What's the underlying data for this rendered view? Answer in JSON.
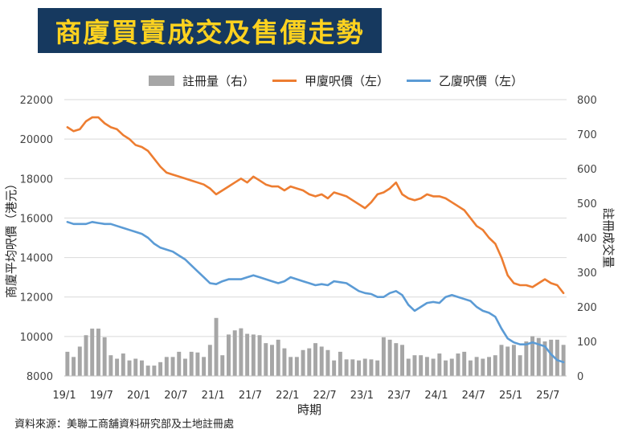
{
  "header": {
    "title": "商廈買賣成交及售價走勢"
  },
  "legend": {
    "bar_label": "註冊量（右）",
    "series_a_label": "甲廈呎價（左）",
    "series_b_label": "乙廈呎價（左）"
  },
  "source": "資料來源：美聯工商舖資料研究部及土地註冊處",
  "colors": {
    "series_a": "#ed7d31",
    "series_b": "#5b9bd5",
    "bars": "#a6a6a6",
    "title_bg": "#16395f",
    "title_text": "#ffd21f"
  },
  "chart_data": {
    "type": "bar+line",
    "xlabel": "時期",
    "ylabel_left": "商廈平均呎價（港元）",
    "ylabel_right": "註冊成交量",
    "ylim_left": [
      8000,
      22000
    ],
    "ylim_right": [
      0,
      800
    ],
    "y_ticks_left": [
      "8000",
      "10000",
      "12000",
      "14000",
      "16000",
      "18000",
      "20000",
      "22000"
    ],
    "y_ticks_right": [
      "0",
      "100",
      "200",
      "300",
      "400",
      "500",
      "600",
      "700",
      "800"
    ],
    "x_ticks": [
      "19/1",
      "19/7",
      "20/1",
      "20/7",
      "21/1",
      "21/7",
      "22/1",
      "22/7",
      "23/1",
      "23/7",
      "24/1",
      "24/7",
      "25/1",
      "25/7"
    ],
    "grid": "horizontal",
    "legend_position": "top",
    "series": [
      {
        "name": "註冊量（右）",
        "kind": "bar",
        "axis": "right",
        "values": [
          70,
          55,
          85,
          118,
          137,
          137,
          112,
          60,
          50,
          65,
          45,
          50,
          45,
          30,
          30,
          40,
          55,
          55,
          70,
          50,
          70,
          68,
          55,
          90,
          168,
          60,
          120,
          132,
          138,
          122,
          120,
          118,
          95,
          90,
          105,
          80,
          55,
          55,
          75,
          80,
          95,
          85,
          75,
          45,
          70,
          48,
          48,
          45,
          50,
          48,
          45,
          112,
          105,
          95,
          90,
          50,
          60,
          60,
          55,
          50,
          65,
          45,
          50,
          65,
          70,
          45,
          55,
          50,
          55,
          60,
          90,
          85,
          90,
          60,
          100,
          115,
          110,
          100,
          105,
          105,
          90
        ]
      },
      {
        "name": "甲廈呎價（左）",
        "kind": "line",
        "axis": "left",
        "values": [
          20600,
          20400,
          20500,
          20900,
          21100,
          21100,
          20800,
          20600,
          20500,
          20200,
          20000,
          19700,
          19600,
          19400,
          19000,
          18600,
          18300,
          18200,
          18100,
          18000,
          17900,
          17800,
          17700,
          17500,
          17200,
          17400,
          17600,
          17800,
          18000,
          17800,
          18100,
          17900,
          17700,
          17600,
          17600,
          17400,
          17600,
          17500,
          17400,
          17200,
          17100,
          17200,
          17000,
          17300,
          17200,
          17100,
          16900,
          16700,
          16500,
          16800,
          17200,
          17300,
          17500,
          17800,
          17200,
          17000,
          16900,
          17000,
          17200,
          17100,
          17100,
          17000,
          16800,
          16600,
          16400,
          16000,
          15600,
          15400,
          15000,
          14700,
          14000,
          13100,
          12700,
          12600,
          12600,
          12500,
          12700,
          12900,
          12700,
          12600,
          12200
        ]
      },
      {
        "name": "乙廈呎價（左）",
        "kind": "line",
        "axis": "left",
        "values": [
          15800,
          15700,
          15700,
          15700,
          15800,
          15750,
          15700,
          15700,
          15600,
          15500,
          15400,
          15300,
          15200,
          15000,
          14700,
          14500,
          14400,
          14300,
          14100,
          13900,
          13600,
          13300,
          13000,
          12700,
          12650,
          12800,
          12900,
          12900,
          12900,
          13000,
          13100,
          13000,
          12900,
          12800,
          12700,
          12800,
          13000,
          12900,
          12800,
          12700,
          12600,
          12650,
          12600,
          12800,
          12750,
          12700,
          12500,
          12300,
          12200,
          12150,
          12000,
          12000,
          12200,
          12300,
          12100,
          11600,
          11300,
          11500,
          11700,
          11750,
          11700,
          12000,
          12100,
          12000,
          11900,
          11800,
          11500,
          11300,
          11200,
          11000,
          10400,
          9900,
          9700,
          9600,
          9600,
          9700,
          9600,
          9500,
          9100,
          8800,
          8700
        ]
      }
    ]
  }
}
